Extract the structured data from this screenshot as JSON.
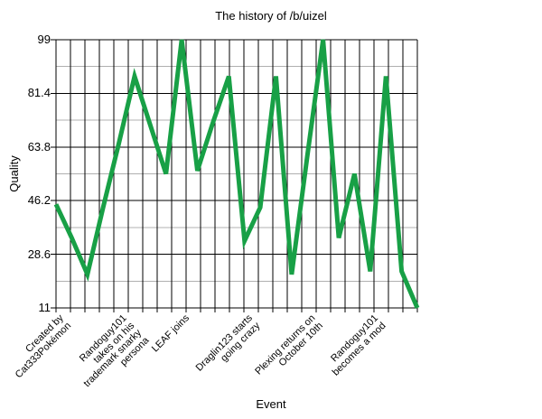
{
  "chart_data": {
    "type": "line",
    "title": "The history of /b/uizel",
    "xlabel": "Event",
    "ylabel": "Quality",
    "ylim": [
      11,
      99
    ],
    "y_ticks": [
      "99",
      "81.4",
      "63.8",
      "46.2",
      "28.6",
      "11"
    ],
    "y_tick_values": [
      99,
      81.4,
      63.8,
      46.2,
      28.6,
      11
    ],
    "y_minor_tick_values": [
      90.2,
      72.6,
      55,
      37.4,
      19.8
    ],
    "vertical_gridlines": 26,
    "values": [
      45,
      34,
      22,
      44,
      65,
      87,
      71,
      55,
      99,
      56,
      72,
      87,
      33,
      44,
      87,
      22,
      61,
      99,
      34,
      55,
      23,
      87,
      23,
      11
    ],
    "x_label_indices": [
      0,
      4,
      8,
      12,
      16,
      20
    ],
    "x_labels": [
      "Created by\nCat333Pokémon",
      "Randoguy101\ntakes on his\ntrademark snarky\npersona",
      "LEAF joins",
      "Draglin123 starts\ngoing crazy",
      "Plexing returns on\nOctober 10th",
      "Randoguy101\nbecomes a mod"
    ],
    "line_color": "#18a046",
    "major_grid_color": "#000000",
    "minor_grid_color": "#b0b0b0",
    "grid": true,
    "legend": false
  }
}
